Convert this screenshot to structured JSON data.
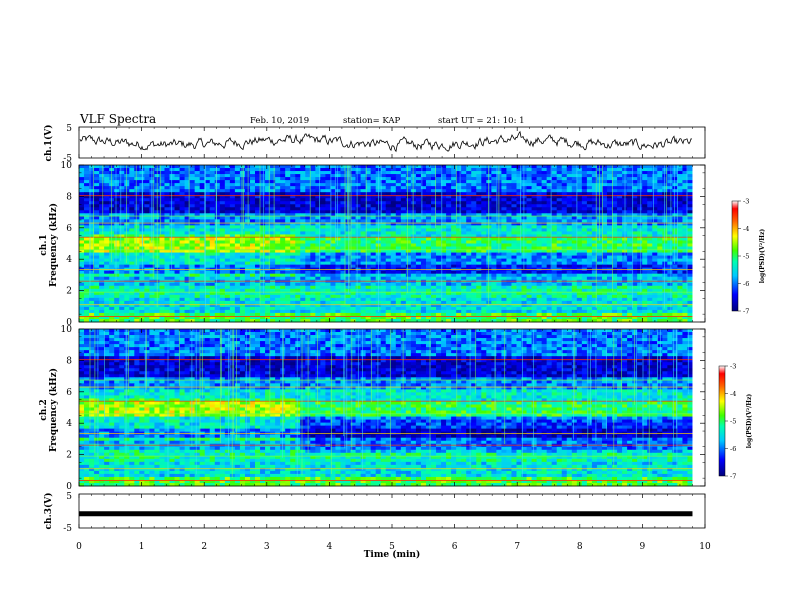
{
  "header": {
    "title": "VLF Spectra",
    "date": "Feb. 10, 2019",
    "station": "station= KAP",
    "start": "start  UT =   21: 10: 1"
  },
  "chart_data": [
    {
      "type": "line",
      "name": "ch1-waveform",
      "ylabel": "ch.1(V)",
      "ylim": [
        -5,
        5
      ],
      "yticks": [
        "5",
        "-5"
      ]
    },
    {
      "type": "heatmap",
      "name": "ch1-spectrogram",
      "ylabel": "ch.1 Frequency (kHz)",
      "ylim": [
        0,
        10
      ],
      "yticks": [
        "0",
        "2",
        "4",
        "6",
        "8",
        "10"
      ],
      "colorbar": {
        "label": "log(PSD)(V²/Hz)",
        "range": [
          -7,
          -3
        ],
        "ticks": [
          "-3",
          "-4",
          "-5",
          "-6",
          "-7"
        ]
      }
    },
    {
      "type": "heatmap",
      "name": "ch2-spectrogram",
      "ylabel": "ch.2 Frequency (kHz)",
      "ylim": [
        0,
        10
      ],
      "yticks": [
        "0",
        "2",
        "4",
        "6",
        "8",
        "10"
      ],
      "colorbar": {
        "label": "log(PSD)(V²/Hz)",
        "range": [
          -7,
          -3
        ],
        "ticks": [
          "-3",
          "-4",
          "-5",
          "-6",
          "-7"
        ]
      }
    },
    {
      "type": "line",
      "name": "ch3-waveform",
      "ylabel": "ch.3(V)",
      "ylim": [
        -5,
        5
      ],
      "yticks": [
        "5",
        "-5"
      ],
      "constant_value": -0.8
    }
  ],
  "xaxis": {
    "label": "Time (min)",
    "range": [
      0,
      10
    ],
    "ticks": [
      "0",
      "1",
      "2",
      "3",
      "4",
      "5",
      "6",
      "7",
      "8",
      "9",
      "10"
    ],
    "data_end": 9.8
  }
}
